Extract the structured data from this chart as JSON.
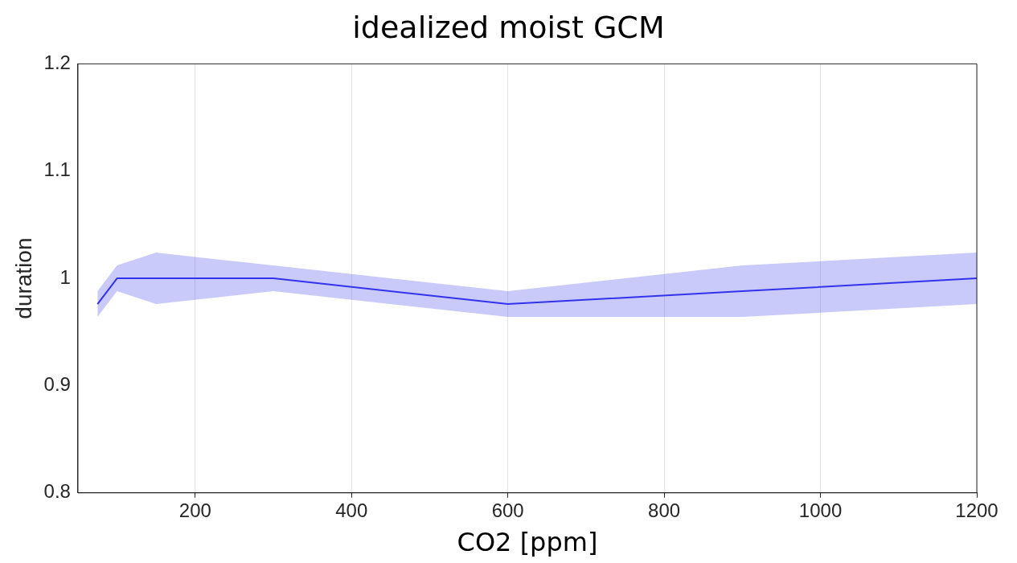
{
  "chart_data": {
    "type": "line",
    "title": "idealized moist GCM",
    "xlabel": "CO2 [ppm]",
    "ylabel": "duration",
    "x": [
      75,
      100,
      150,
      300,
      600,
      900,
      1200
    ],
    "series": [
      {
        "color": "#3333ee",
        "values": [
          0.976,
          1.0,
          1.0,
          1.0,
          0.976,
          0.988,
          1.0
        ],
        "lower": [
          0.964,
          0.988,
          0.976,
          0.988,
          0.964,
          0.964,
          0.976
        ],
        "upper": [
          0.988,
          1.012,
          1.024,
          1.012,
          0.988,
          1.012,
          1.024
        ]
      }
    ],
    "xlim": [
      50,
      1200
    ],
    "xticks": [
      200,
      400,
      600,
      800,
      1000,
      1200
    ],
    "ylim": [
      0.8,
      1.2
    ],
    "yticks": [
      0.8,
      0.9,
      1,
      1.1,
      1.2
    ],
    "grid": "x",
    "legend": false,
    "marker": "none",
    "line_style": "solid"
  }
}
